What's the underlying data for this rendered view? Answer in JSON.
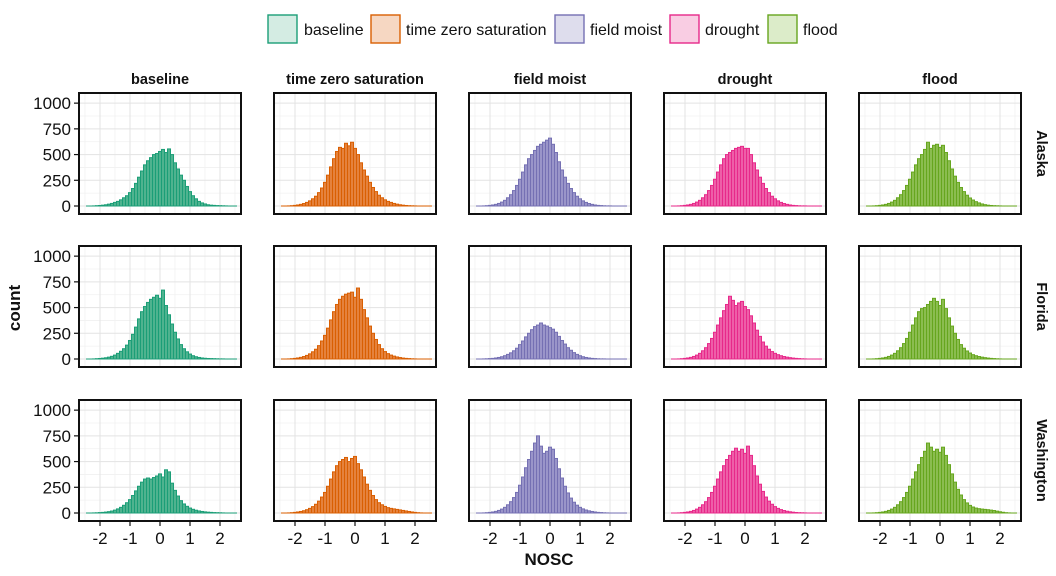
{
  "chart_data": {
    "type": "histogram",
    "title": "",
    "xlabel": "NOSC",
    "ylabel": "count",
    "xlim": [
      -2.7,
      2.7
    ],
    "ylim": [
      0,
      1050
    ],
    "x_ticks": [
      -2,
      -1,
      0,
      1,
      2
    ],
    "x_tick_labels": [
      "-2",
      "-1",
      "0",
      "1",
      "2"
    ],
    "y_ticks": [
      0,
      250,
      500,
      750,
      1000
    ],
    "y_tick_labels": [
      "0",
      "250",
      "500",
      "750",
      "1000"
    ],
    "grid": true,
    "legend_position": "top",
    "bin_width": 0.1,
    "bin_start": -2.45,
    "legend": [
      {
        "key": "baseline",
        "label": "baseline"
      },
      {
        "key": "tzs",
        "label": "time zero saturation"
      },
      {
        "key": "fm",
        "label": "field moist"
      },
      {
        "key": "drought",
        "label": "drought"
      },
      {
        "key": "flood",
        "label": "flood"
      }
    ],
    "colors": {
      "baseline": {
        "stroke": "#1b9e77",
        "fill": "#4fb38f",
        "legend_fill": "#d4ece3"
      },
      "tzs": {
        "stroke": "#d95f02",
        "fill": "#e5823d",
        "legend_fill": "#f6d7c2"
      },
      "fm": {
        "stroke": "#7570b3",
        "fill": "#9a95c9",
        "legend_fill": "#dedded"
      },
      "drought": {
        "stroke": "#e7298a",
        "fill": "#ee5fa8",
        "legend_fill": "#f9cde3"
      },
      "flood": {
        "stroke": "#66a61e",
        "fill": "#8bbd50",
        "legend_fill": "#dcecc9"
      }
    },
    "columns": [
      "baseline",
      "time zero saturation",
      "field moist",
      "drought",
      "flood"
    ],
    "column_keys": [
      "baseline",
      "tzs",
      "fm",
      "drought",
      "flood"
    ],
    "rows": [
      "Alaska",
      "Florida",
      "Washington"
    ],
    "series": [
      [
        {
          "name": "baseline / Alaska",
          "values": [
            0,
            0,
            1,
            3,
            5,
            8,
            12,
            18,
            25,
            35,
            45,
            60,
            80,
            100,
            130,
            170,
            220,
            280,
            340,
            400,
            440,
            470,
            500,
            510,
            530,
            550,
            520,
            555,
            500,
            420,
            360,
            300,
            250,
            190,
            140,
            100,
            70,
            45,
            30,
            20,
            12,
            8,
            6,
            4,
            3,
            2,
            1,
            0,
            0,
            0
          ]
        },
        {
          "name": "tzs / Alaska",
          "values": [
            0,
            0,
            1,
            3,
            6,
            10,
            16,
            24,
            35,
            50,
            70,
            95,
            130,
            175,
            230,
            300,
            380,
            460,
            530,
            570,
            560,
            610,
            585,
            620,
            560,
            500,
            420,
            350,
            290,
            230,
            180,
            140,
            105,
            80,
            60,
            45,
            35,
            25,
            18,
            12,
            8,
            5,
            3,
            2,
            1,
            0,
            0,
            0,
            0,
            0
          ]
        },
        {
          "name": "fm / Alaska",
          "values": [
            0,
            0,
            1,
            3,
            6,
            10,
            16,
            25,
            38,
            55,
            80,
            110,
            150,
            200,
            260,
            330,
            400,
            460,
            500,
            540,
            580,
            600,
            620,
            640,
            660,
            600,
            520,
            430,
            350,
            280,
            220,
            170,
            130,
            95,
            70,
            50,
            35,
            24,
            16,
            10,
            6,
            4,
            2,
            1,
            1,
            0,
            0,
            0,
            0,
            0
          ]
        },
        {
          "name": "drought / Alaska",
          "values": [
            0,
            0,
            1,
            3,
            6,
            10,
            16,
            25,
            38,
            55,
            80,
            110,
            150,
            200,
            260,
            330,
            400,
            460,
            500,
            520,
            540,
            560,
            570,
            580,
            560,
            560,
            500,
            420,
            350,
            280,
            220,
            170,
            130,
            95,
            70,
            50,
            35,
            24,
            16,
            10,
            6,
            4,
            2,
            1,
            1,
            0,
            0,
            0,
            0,
            0
          ]
        },
        {
          "name": "flood / Alaska",
          "values": [
            0,
            0,
            1,
            3,
            6,
            10,
            16,
            25,
            38,
            55,
            80,
            110,
            150,
            200,
            260,
            330,
            400,
            460,
            500,
            550,
            620,
            560,
            590,
            600,
            570,
            590,
            520,
            440,
            360,
            290,
            230,
            180,
            140,
            105,
            78,
            58,
            42,
            30,
            20,
            13,
            8,
            5,
            3,
            2,
            1,
            0,
            0,
            0,
            0,
            0
          ]
        }
      ],
      [
        {
          "name": "baseline / Florida",
          "values": [
            0,
            0,
            1,
            3,
            5,
            8,
            12,
            18,
            26,
            38,
            55,
            75,
            100,
            135,
            180,
            240,
            310,
            390,
            460,
            510,
            550,
            580,
            600,
            620,
            590,
            670,
            520,
            430,
            340,
            260,
            195,
            140,
            100,
            70,
            48,
            32,
            22,
            15,
            10,
            7,
            5,
            4,
            3,
            2,
            1,
            1,
            0,
            0,
            0,
            0
          ]
        },
        {
          "name": "tzs / Florida",
          "values": [
            0,
            0,
            1,
            3,
            6,
            10,
            16,
            24,
            35,
            50,
            70,
            95,
            130,
            175,
            230,
            300,
            380,
            460,
            530,
            580,
            610,
            630,
            640,
            650,
            600,
            690,
            580,
            480,
            400,
            320,
            250,
            190,
            140,
            100,
            72,
            52,
            38,
            28,
            20,
            14,
            9,
            6,
            4,
            2,
            1,
            0,
            0,
            0,
            0,
            0
          ]
        },
        {
          "name": "fm / Florida",
          "values": [
            0,
            0,
            1,
            2,
            4,
            6,
            10,
            15,
            22,
            32,
            45,
            60,
            80,
            105,
            140,
            175,
            215,
            250,
            285,
            315,
            330,
            350,
            330,
            320,
            305,
            290,
            260,
            220,
            180,
            145,
            110,
            85,
            62,
            45,
            32,
            22,
            15,
            10,
            6,
            4,
            2,
            1,
            1,
            0,
            0,
            0,
            0,
            0,
            0,
            0
          ]
        },
        {
          "name": "drought / Florida",
          "values": [
            0,
            0,
            1,
            3,
            6,
            10,
            16,
            25,
            38,
            55,
            80,
            110,
            150,
            200,
            260,
            330,
            400,
            470,
            530,
            610,
            570,
            520,
            545,
            560,
            510,
            480,
            420,
            350,
            280,
            220,
            165,
            125,
            95,
            72,
            55,
            42,
            32,
            24,
            18,
            13,
            9,
            6,
            4,
            2,
            1,
            0,
            0,
            0,
            0,
            0
          ]
        },
        {
          "name": "flood / Florida",
          "values": [
            0,
            0,
            1,
            3,
            6,
            10,
            16,
            25,
            38,
            55,
            80,
            110,
            150,
            200,
            260,
            330,
            400,
            460,
            490,
            500,
            530,
            560,
            590,
            560,
            520,
            580,
            490,
            400,
            320,
            250,
            190,
            140,
            105,
            78,
            58,
            42,
            32,
            24,
            18,
            13,
            9,
            6,
            4,
            2,
            1,
            0,
            0,
            0,
            0,
            0
          ]
        }
      ],
      [
        {
          "name": "baseline / Washington",
          "values": [
            0,
            0,
            1,
            2,
            4,
            6,
            9,
            13,
            19,
            28,
            40,
            55,
            75,
            100,
            130,
            170,
            215,
            260,
            300,
            330,
            340,
            330,
            345,
            360,
            380,
            350,
            420,
            400,
            290,
            220,
            165,
            120,
            88,
            65,
            48,
            36,
            27,
            20,
            15,
            11,
            8,
            6,
            4,
            3,
            2,
            1,
            0,
            0,
            0,
            0
          ]
        },
        {
          "name": "tzs / Washington",
          "values": [
            0,
            0,
            1,
            3,
            6,
            10,
            15,
            22,
            32,
            45,
            62,
            85,
            115,
            155,
            200,
            260,
            330,
            400,
            460,
            500,
            520,
            540,
            500,
            530,
            550,
            480,
            420,
            350,
            280,
            220,
            170,
            130,
            100,
            80,
            64,
            52,
            45,
            40,
            35,
            30,
            25,
            20,
            15,
            10,
            6,
            3,
            1,
            0,
            0,
            0
          ]
        },
        {
          "name": "fm / Washington",
          "values": [
            0,
            0,
            1,
            3,
            6,
            10,
            16,
            25,
            38,
            55,
            80,
            110,
            150,
            200,
            270,
            350,
            440,
            520,
            600,
            680,
            750,
            650,
            580,
            600,
            640,
            620,
            530,
            430,
            340,
            260,
            195,
            145,
            105,
            76,
            55,
            40,
            29,
            21,
            15,
            10,
            6,
            4,
            2,
            1,
            0,
            0,
            0,
            0,
            0,
            0
          ]
        },
        {
          "name": "drought / Washington",
          "values": [
            0,
            0,
            1,
            3,
            6,
            10,
            16,
            25,
            38,
            55,
            80,
            110,
            150,
            200,
            260,
            330,
            400,
            460,
            520,
            560,
            600,
            630,
            600,
            620,
            580,
            650,
            560,
            460,
            360,
            280,
            210,
            155,
            115,
            85,
            62,
            45,
            33,
            24,
            17,
            12,
            8,
            5,
            3,
            2,
            1,
            0,
            0,
            0,
            0,
            0
          ]
        },
        {
          "name": "flood / Washington",
          "values": [
            0,
            0,
            1,
            3,
            6,
            10,
            16,
            25,
            38,
            55,
            80,
            110,
            150,
            200,
            260,
            330,
            400,
            470,
            540,
            600,
            680,
            640,
            600,
            620,
            590,
            640,
            560,
            470,
            380,
            300,
            230,
            175,
            130,
            98,
            74,
            58,
            48,
            42,
            38,
            35,
            32,
            28,
            24,
            18,
            12,
            7,
            3,
            1,
            0,
            0
          ]
        }
      ]
    ]
  }
}
